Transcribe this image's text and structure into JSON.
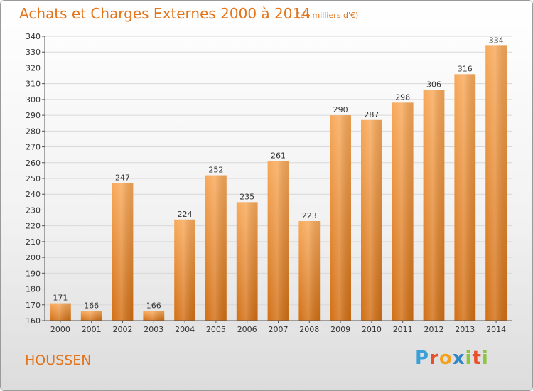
{
  "header": {
    "title": "Achats et Charges Externes 2000 à 2014",
    "subtitle": "(en milliers d'€)"
  },
  "footer": {
    "town": "HOUSSEN",
    "logo_letters": [
      "P",
      "r",
      "o",
      "x",
      "i",
      "t",
      "i"
    ],
    "logo_colors": [
      "#3aa0d8",
      "#e8512a",
      "#f5a21b",
      "#2f86c8",
      "#8cc63f",
      "#e8512a",
      "#8cc63f"
    ]
  },
  "colors": {
    "bar_light": "#f8a95a",
    "bar_dark": "#d26f14",
    "axis": "#555555",
    "grid": "#d8d8d8",
    "label": "#333333"
  },
  "chart_data": {
    "type": "bar",
    "title": "Achats et Charges Externes 2000 à 2014",
    "categories": [
      "2000",
      "2001",
      "2002",
      "2003",
      "2004",
      "2005",
      "2006",
      "2007",
      "2008",
      "2009",
      "2010",
      "2011",
      "2012",
      "2013",
      "2014"
    ],
    "values": [
      171,
      166,
      247,
      166,
      224,
      252,
      235,
      261,
      223,
      290,
      287,
      298,
      306,
      316,
      334
    ],
    "ylim": [
      160,
      340
    ],
    "ytick_step": 10,
    "grid": true,
    "data_labels": true
  }
}
